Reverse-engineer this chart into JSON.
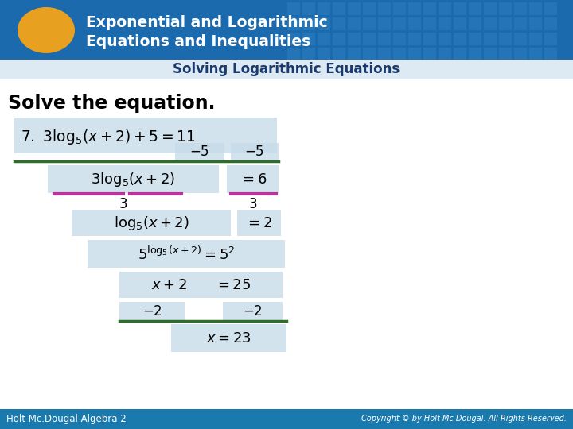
{
  "title_line1": "Exponential and Logarithmic",
  "title_line2": "Equations and Inequalities",
  "subtitle": "Solving Logarithmic Equations",
  "solve_text": "Solve the equation.",
  "header_bg_color": "#1b6aad",
  "header_text_color": "#ffffff",
  "subtitle_color": "#1a3a6b",
  "subtitle_bg": "#ddeaf4",
  "oval_color": "#e8a020",
  "footer_bg": "#1a7aad",
  "footer_left": "Holt Mc.Dougal Algebra 2",
  "footer_right": "Copyright © by Holt Mc Dougal. All Rights Reserved.",
  "body_bg": "#ffffff",
  "box_color": "#c5dae8",
  "green_line_color": "#2d6e2d",
  "pink_line_color": "#b8359a",
  "grid_color": "#2a7dc0"
}
